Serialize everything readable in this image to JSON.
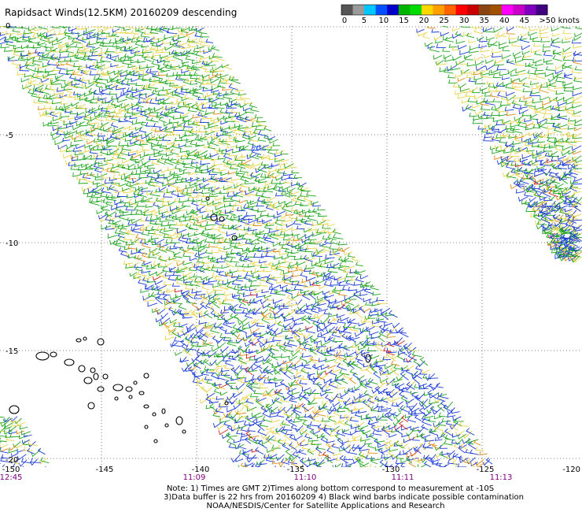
{
  "title": "Rapidsact Winds(12.5KM) 20160209 descending",
  "legend": {
    "unit_label": ">50 knots",
    "ticks": [
      "0",
      "5",
      "10",
      "15",
      "20",
      "25",
      "30",
      "35",
      "40",
      "45"
    ],
    "colors": [
      "#555555",
      "#9a9a9a",
      "#00c8ff",
      "#0050ff",
      "#0000c8",
      "#00b400",
      "#00dc00",
      "#ffd700",
      "#ffa000",
      "#ff6400",
      "#ff0000",
      "#c80000",
      "#8b4513",
      "#a05000",
      "#ff00ff",
      "#c800c8",
      "#8000c0",
      "#400080"
    ]
  },
  "map": {
    "lat_labels": [
      "0",
      "-5",
      "-10",
      "-15",
      "-20"
    ],
    "lon_labels": [
      "-150",
      "-145",
      "-140",
      "-135",
      "-130",
      "-125",
      "-120"
    ],
    "time_labels": [
      "12:45",
      "11:09",
      "11:10",
      "11:11",
      "11:13"
    ],
    "colors": {
      "grid": "#555555",
      "time_label": "#800080",
      "coast": "#000000",
      "barb_green": "#1fa51f",
      "barb_blue": "#1a3ad6",
      "barb_yellow": "#e8d44a",
      "barb_orange": "#e08a1a",
      "barb_red": "#d02020"
    }
  },
  "notes": {
    "line1": "Note: 1) Times are GMT 2)Times along bottom correspond to measurement at -10S",
    "line2": "3)Data buffer is 22 hrs from 20160209 4) Black wind barbs indicate possible contamination",
    "line3": "NOAA/NESDIS/Center for Satellite Applications and Research"
  }
}
